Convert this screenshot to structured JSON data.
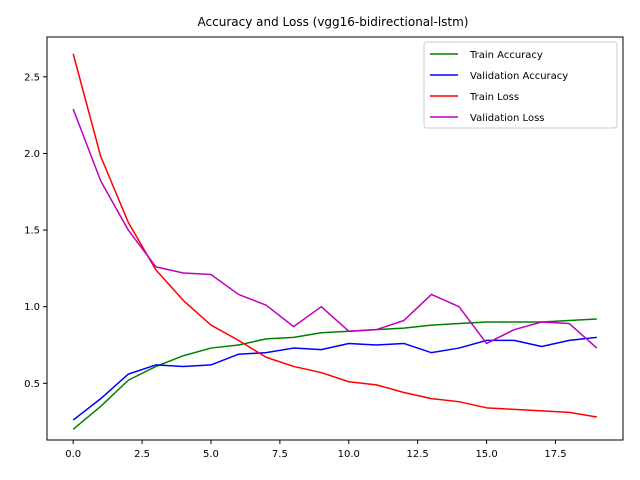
{
  "chart_data": {
    "type": "line",
    "title": "Accuracy and Loss (vgg16-bidirectional-lstm)",
    "xlabel": "",
    "ylabel": "",
    "xlim": [
      -0.95,
      19.95
    ],
    "ylim": [
      0.13,
      2.76
    ],
    "x_ticks": [
      0,
      2.5,
      5,
      7.5,
      10,
      12.5,
      15,
      17.5
    ],
    "x_tick_labels": [
      "0.0",
      "2.5",
      "5.0",
      "7.5",
      "10.0",
      "12.5",
      "15.0",
      "17.5"
    ],
    "y_ticks": [
      0.5,
      1.0,
      1.5,
      2.0,
      2.5
    ],
    "y_tick_labels": [
      "0.5",
      "1.0",
      "1.5",
      "2.0",
      "2.5"
    ],
    "grid": false,
    "legend_position": "top-right",
    "x": [
      0,
      1,
      2,
      3,
      4,
      5,
      6,
      7,
      8,
      9,
      10,
      11,
      12,
      13,
      14,
      15,
      16,
      17,
      18,
      19
    ],
    "series": [
      {
        "name": "Train Accuracy",
        "color": "#008000",
        "values": [
          0.2,
          0.35,
          0.52,
          0.61,
          0.68,
          0.73,
          0.75,
          0.79,
          0.8,
          0.83,
          0.84,
          0.85,
          0.86,
          0.88,
          0.89,
          0.9,
          0.9,
          0.9,
          0.91,
          0.92
        ]
      },
      {
        "name": "Validation Accuracy",
        "color": "#0000ff",
        "values": [
          0.26,
          0.4,
          0.56,
          0.62,
          0.61,
          0.62,
          0.69,
          0.7,
          0.73,
          0.72,
          0.76,
          0.75,
          0.76,
          0.7,
          0.73,
          0.78,
          0.78,
          0.74,
          0.78,
          0.8
        ]
      },
      {
        "name": "Train Loss",
        "color": "#ff0000",
        "values": [
          2.65,
          1.98,
          1.55,
          1.24,
          1.04,
          0.88,
          0.78,
          0.67,
          0.61,
          0.57,
          0.51,
          0.49,
          0.44,
          0.4,
          0.38,
          0.34,
          0.33,
          0.32,
          0.31,
          0.28
        ]
      },
      {
        "name": "Validation Loss",
        "color": "#bf00bf",
        "values": [
          2.29,
          1.82,
          1.5,
          1.26,
          1.22,
          1.21,
          1.08,
          1.01,
          0.87,
          1.0,
          0.84,
          0.85,
          0.91,
          1.08,
          1.0,
          0.76,
          0.85,
          0.9,
          0.89,
          0.73
        ]
      }
    ]
  }
}
